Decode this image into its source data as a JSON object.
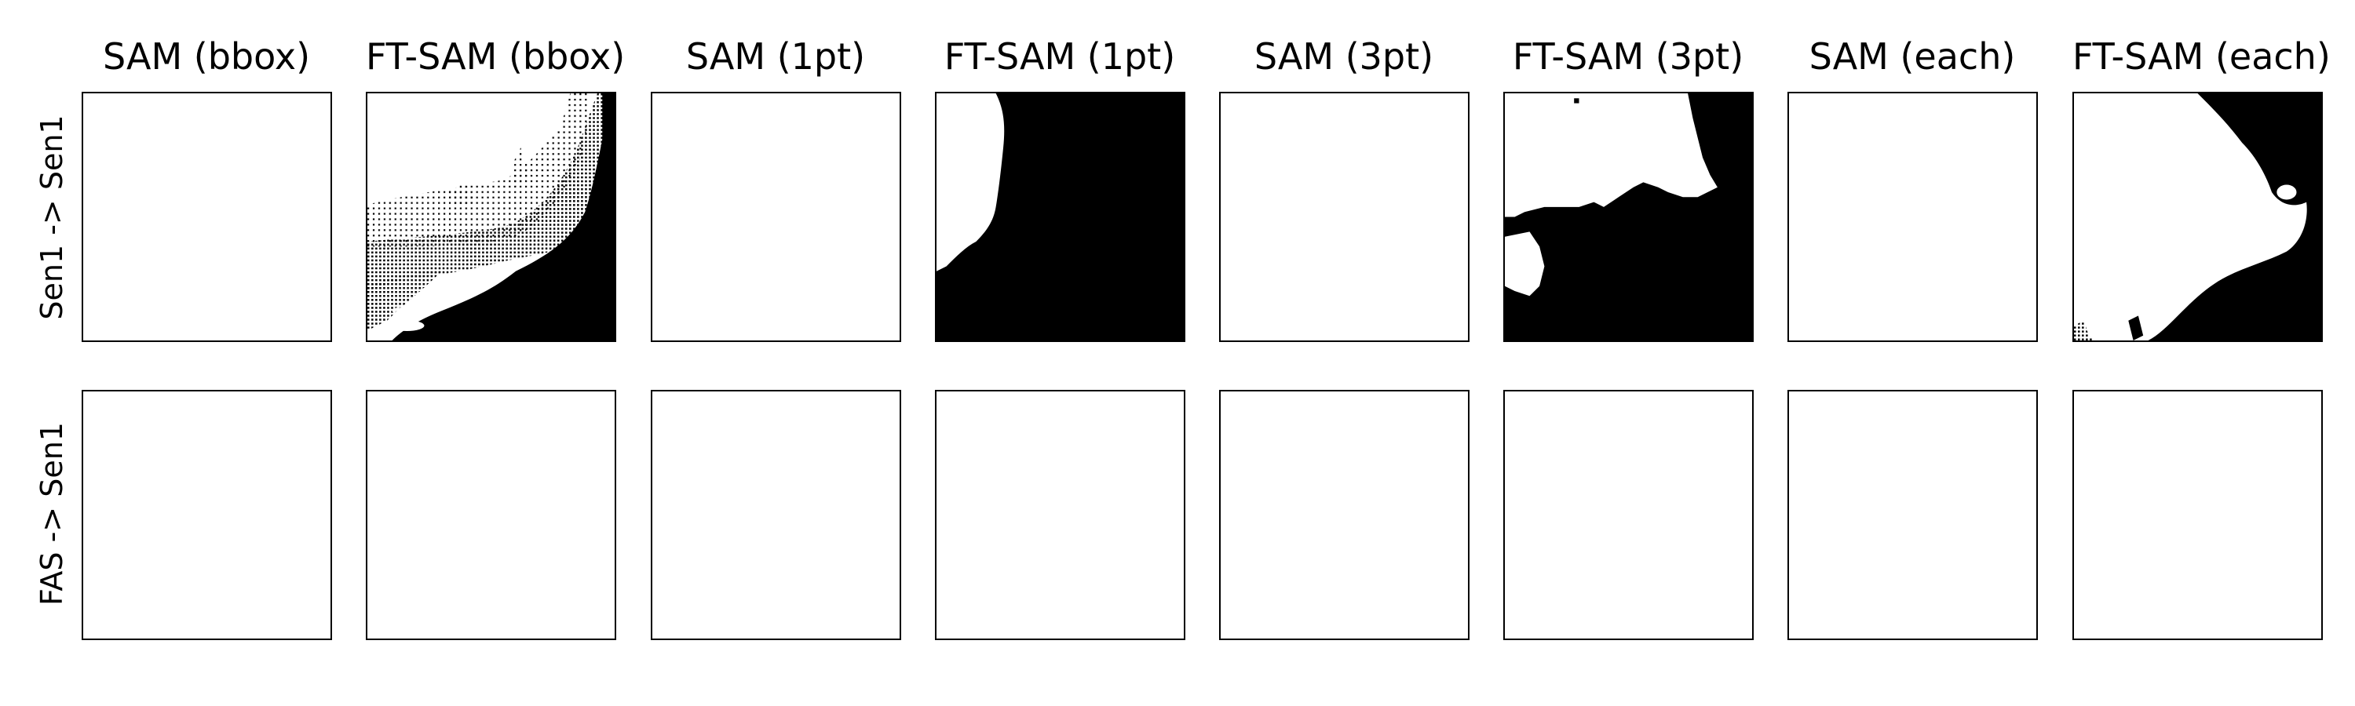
{
  "figure": {
    "column_titles": [
      "SAM (bbox)",
      "FT-SAM (bbox)",
      "SAM (1pt)",
      "FT-SAM (1pt)",
      "SAM (3pt)",
      "FT-SAM (3pt)",
      "SAM (each)",
      "FT-SAM (each)"
    ],
    "row_labels": [
      "Sen1 -> Sen1",
      "FAS -> Sen1"
    ],
    "panels": [
      [
        {
          "content": "blank"
        },
        {
          "content": "mask-ft-bbox"
        },
        {
          "content": "blank"
        },
        {
          "content": "mask-ft-1pt"
        },
        {
          "content": "blank"
        },
        {
          "content": "mask-ft-3pt"
        },
        {
          "content": "blank"
        },
        {
          "content": "mask-ft-each"
        }
      ],
      [
        {
          "content": "blank"
        },
        {
          "content": "blank"
        },
        {
          "content": "blank"
        },
        {
          "content": "blank"
        },
        {
          "content": "blank"
        },
        {
          "content": "blank"
        },
        {
          "content": "blank"
        },
        {
          "content": "blank"
        }
      ]
    ],
    "colors": {
      "foreground": "#000000",
      "background": "#ffffff",
      "border": "#000000"
    }
  }
}
